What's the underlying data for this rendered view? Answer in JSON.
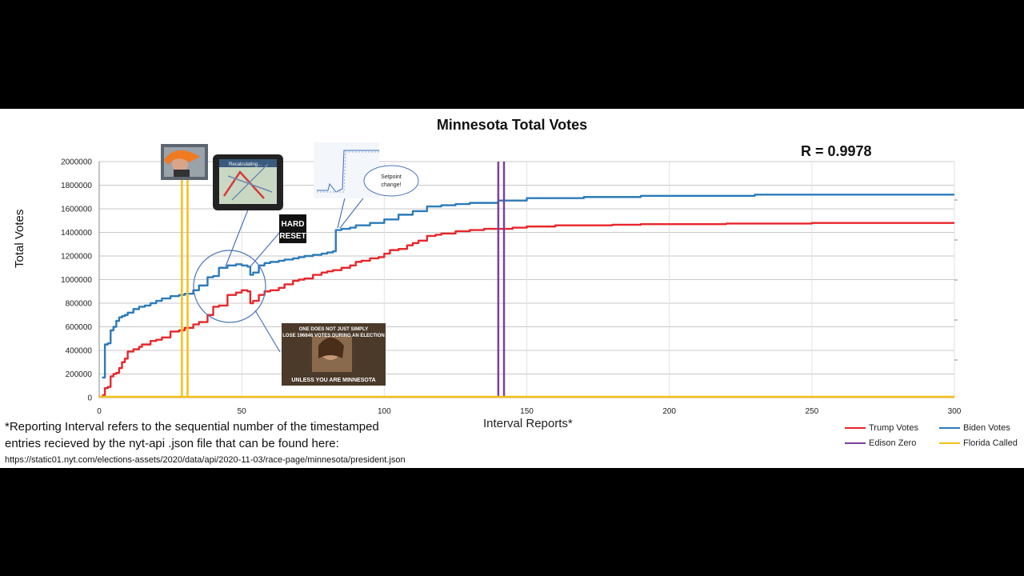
{
  "notes": {
    "line1": "*Reporting Interval refers to the sequential number of the timestamped",
    "line2": " entries recieved by the nyt-api .json file that can be found here:",
    "url": "https://static01.nyt.com/elections-assets/2020/data/api/2020-11-03/race-page/minnesota/president.json"
  },
  "annotations": {
    "r_value": "R = 0.9978",
    "speech_bubble": [
      "Setpoint",
      "change!"
    ],
    "hard_reset": [
      "HARD",
      "RESET"
    ],
    "gps_text": "Recalculating...",
    "meme_top": [
      "ONE DOES NOT JUST SIMPLY",
      "LOSE 196846 VOTES DURING AN ELECTION"
    ],
    "meme_bottom": "UNLESS YOU ARE MINNESOTA"
  },
  "colors": {
    "trump": "#e8262b",
    "biden": "#2b7bb9",
    "edison": "#7b3fa1",
    "florida": "#f5c016",
    "grid": "#c8c8c8",
    "annotation": "#4a74b8"
  },
  "chart_data": {
    "type": "line",
    "title": "Minnesota Total Votes",
    "xlabel": "Interval Reports*",
    "ylabel": "Total Votes",
    "xlim": [
      0,
      300
    ],
    "ylim": [
      0,
      2000000
    ],
    "xticks": [
      0,
      50,
      100,
      150,
      200,
      250,
      300
    ],
    "yticks": [
      0,
      200000,
      400000,
      600000,
      800000,
      1000000,
      1200000,
      1400000,
      1600000,
      1800000,
      2000000
    ],
    "grid": true,
    "legend_position": "bottom-right",
    "series": [
      {
        "name": "Trump Votes",
        "color": "#e8262b",
        "x": [
          1,
          2,
          3,
          4,
          5,
          6,
          7,
          8,
          9,
          10,
          12,
          14,
          15,
          18,
          20,
          22,
          25,
          28,
          30,
          33,
          35,
          38,
          40,
          42,
          45,
          48,
          50,
          52,
          53,
          54,
          56,
          58,
          60,
          63,
          65,
          68,
          70,
          72,
          75,
          78,
          80,
          82,
          83,
          85,
          88,
          90,
          92,
          95,
          98,
          100,
          102,
          105,
          108,
          110,
          112,
          115,
          118,
          120,
          125,
          130,
          135,
          140,
          145,
          150,
          160,
          170,
          180,
          190,
          200,
          220,
          250,
          300
        ],
        "y": [
          20000,
          80000,
          90000,
          180000,
          200000,
          210000,
          250000,
          300000,
          330000,
          390000,
          410000,
          430000,
          450000,
          480000,
          490000,
          510000,
          560000,
          570000,
          590000,
          620000,
          640000,
          700000,
          770000,
          780000,
          870000,
          890000,
          910000,
          900000,
          800000,
          820000,
          870000,
          900000,
          910000,
          930000,
          960000,
          990000,
          1000000,
          1010000,
          1040000,
          1060000,
          1070000,
          1080000,
          1080000,
          1100000,
          1120000,
          1150000,
          1160000,
          1180000,
          1190000,
          1220000,
          1250000,
          1260000,
          1290000,
          1310000,
          1330000,
          1370000,
          1380000,
          1390000,
          1410000,
          1420000,
          1430000,
          1430000,
          1440000,
          1450000,
          1460000,
          1460000,
          1465000,
          1470000,
          1470000,
          1475000,
          1480000,
          1480000
        ]
      },
      {
        "name": "Biden Votes",
        "color": "#2b7bb9",
        "x": [
          1,
          2,
          3,
          4,
          5,
          6,
          7,
          8,
          9,
          10,
          12,
          14,
          16,
          18,
          20,
          22,
          25,
          28,
          30,
          33,
          35,
          38,
          40,
          42,
          45,
          48,
          50,
          52,
          53,
          54,
          56,
          58,
          60,
          63,
          65,
          68,
          70,
          72,
          75,
          78,
          80,
          82,
          83,
          85,
          88,
          90,
          95,
          100,
          105,
          110,
          115,
          120,
          125,
          130,
          140,
          150,
          160,
          170,
          180,
          190,
          200,
          230,
          300
        ],
        "y": [
          170000,
          450000,
          460000,
          570000,
          600000,
          650000,
          680000,
          690000,
          700000,
          720000,
          750000,
          770000,
          780000,
          800000,
          820000,
          840000,
          860000,
          870000,
          880000,
          910000,
          950000,
          1020000,
          1030000,
          1100000,
          1120000,
          1130000,
          1120000,
          1110000,
          1040000,
          1060000,
          1120000,
          1140000,
          1150000,
          1160000,
          1170000,
          1180000,
          1190000,
          1200000,
          1210000,
          1220000,
          1230000,
          1240000,
          1420000,
          1430000,
          1440000,
          1460000,
          1480000,
          1510000,
          1550000,
          1580000,
          1620000,
          1630000,
          1640000,
          1650000,
          1670000,
          1690000,
          1690000,
          1700000,
          1700000,
          1710000,
          1710000,
          1720000,
          1720000
        ]
      },
      {
        "name": "Edison Zero",
        "color": "#7b3fa1",
        "vertical_lines_at_x": [
          140,
          142
        ]
      },
      {
        "name": "Florida Called",
        "color": "#f5c016",
        "vertical_lines_at_x": [
          29,
          31
        ],
        "baseline_y": 0
      }
    ]
  }
}
